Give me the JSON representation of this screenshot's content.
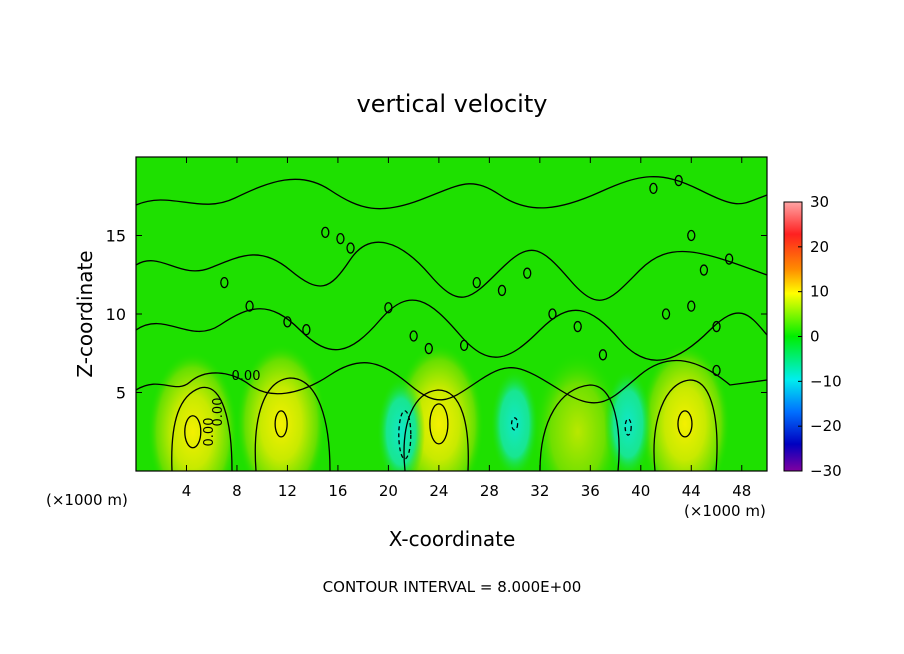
{
  "chart_data": {
    "type": "heatmap",
    "title": "vertical velocity",
    "xlabel": "X-coordinate",
    "ylabel": "Z-coordinate",
    "x_unit": "(×1000 m)",
    "x_unit_right": "(×1000 m)",
    "footnote": "CONTOUR INTERVAL = 8.000E+00",
    "xlim": [
      0,
      50
    ],
    "ylim": [
      0,
      20
    ],
    "x_ticks": [
      4,
      8,
      12,
      16,
      20,
      24,
      28,
      32,
      36,
      40,
      44,
      48
    ],
    "y_ticks": [
      5,
      10,
      15
    ],
    "colorbar": {
      "range": [
        -30,
        30
      ],
      "ticks": [
        30,
        20,
        10,
        0,
        -10,
        -20,
        -30
      ],
      "tick_labels": [
        "30",
        "20",
        "10",
        "0",
        "−10",
        "−20",
        "−30"
      ],
      "colors": [
        "#ff9fa0",
        "#ff1010",
        "#ffa000",
        "#ffff00",
        "#00ee00",
        "#00eeee",
        "#0080ff",
        "#0000cc",
        "#8000a0"
      ]
    },
    "background_value": 0,
    "contour_interval": 8.0,
    "contour_labels": [
      "0.00",
      "0.00",
      "0.00"
    ],
    "updraft_cores": [
      {
        "x": 4.5,
        "z": 2.5,
        "w": 10
      },
      {
        "x": 11.5,
        "z": 3.0,
        "w": 8
      },
      {
        "x": 24.0,
        "z": 3.0,
        "w": 10
      },
      {
        "x": 35.0,
        "z": 2.5,
        "w": 5
      },
      {
        "x": 43.5,
        "z": 3.0,
        "w": 9
      }
    ],
    "downdraft_cores": [
      {
        "x": 21.0,
        "z": 2.5,
        "w": -6
      },
      {
        "x": 30.0,
        "z": 3.0,
        "w": -4
      },
      {
        "x": 39.0,
        "z": 3.0,
        "w": -5
      }
    ]
  }
}
